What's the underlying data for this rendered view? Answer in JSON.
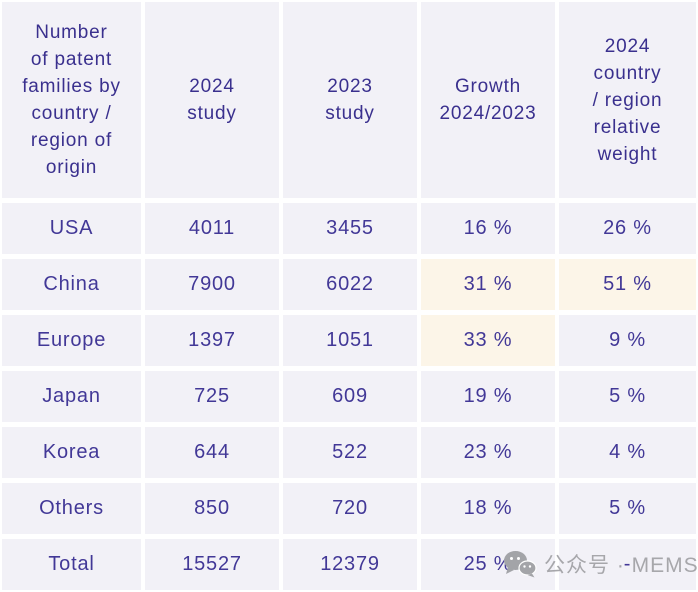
{
  "chart_data": {
    "type": "table",
    "title": "Number of patent families by country / region of origin",
    "columns": [
      "Number\nof patent\nfamilies by\ncountry /\nregion of\norigin",
      "2024\nstudy",
      "2023\nstudy",
      "Growth\n2024/2023",
      "2024\ncountry\n/ region\nrelative\nweight"
    ],
    "rows": [
      {
        "cells": [
          "USA",
          "4011",
          "3455",
          "16 %",
          "26 %"
        ],
        "highlight_cols": []
      },
      {
        "cells": [
          "China",
          "7900",
          "6022",
          "31 %",
          "51 %"
        ],
        "highlight_cols": [
          3,
          4
        ]
      },
      {
        "cells": [
          "Europe",
          "1397",
          "1051",
          "33 %",
          "9 %"
        ],
        "highlight_cols": [
          3
        ]
      },
      {
        "cells": [
          "Japan",
          "725",
          "609",
          "19 %",
          "5 %"
        ],
        "highlight_cols": []
      },
      {
        "cells": [
          "Korea",
          "644",
          "522",
          "23 %",
          "4 %"
        ],
        "highlight_cols": []
      },
      {
        "cells": [
          "Others",
          "850",
          "720",
          "18 %",
          "5 %"
        ],
        "highlight_cols": []
      },
      {
        "cells": [
          "Total",
          "15527",
          "12379",
          "25 %",
          "-"
        ],
        "highlight_cols": []
      }
    ],
    "layout": {
      "grid": "off",
      "header_position": "top",
      "cell_gap_color": "#ffffff"
    }
  },
  "watermark": {
    "icon": "wechat-logo",
    "text": "公众号 · MEMS"
  },
  "colors": {
    "cell_background": "#f2f1f7",
    "highlight_background": "#fcf5e8",
    "cell_text": "#423897",
    "header_text": "#3a308e",
    "watermark_text": "#a7a7ab"
  }
}
